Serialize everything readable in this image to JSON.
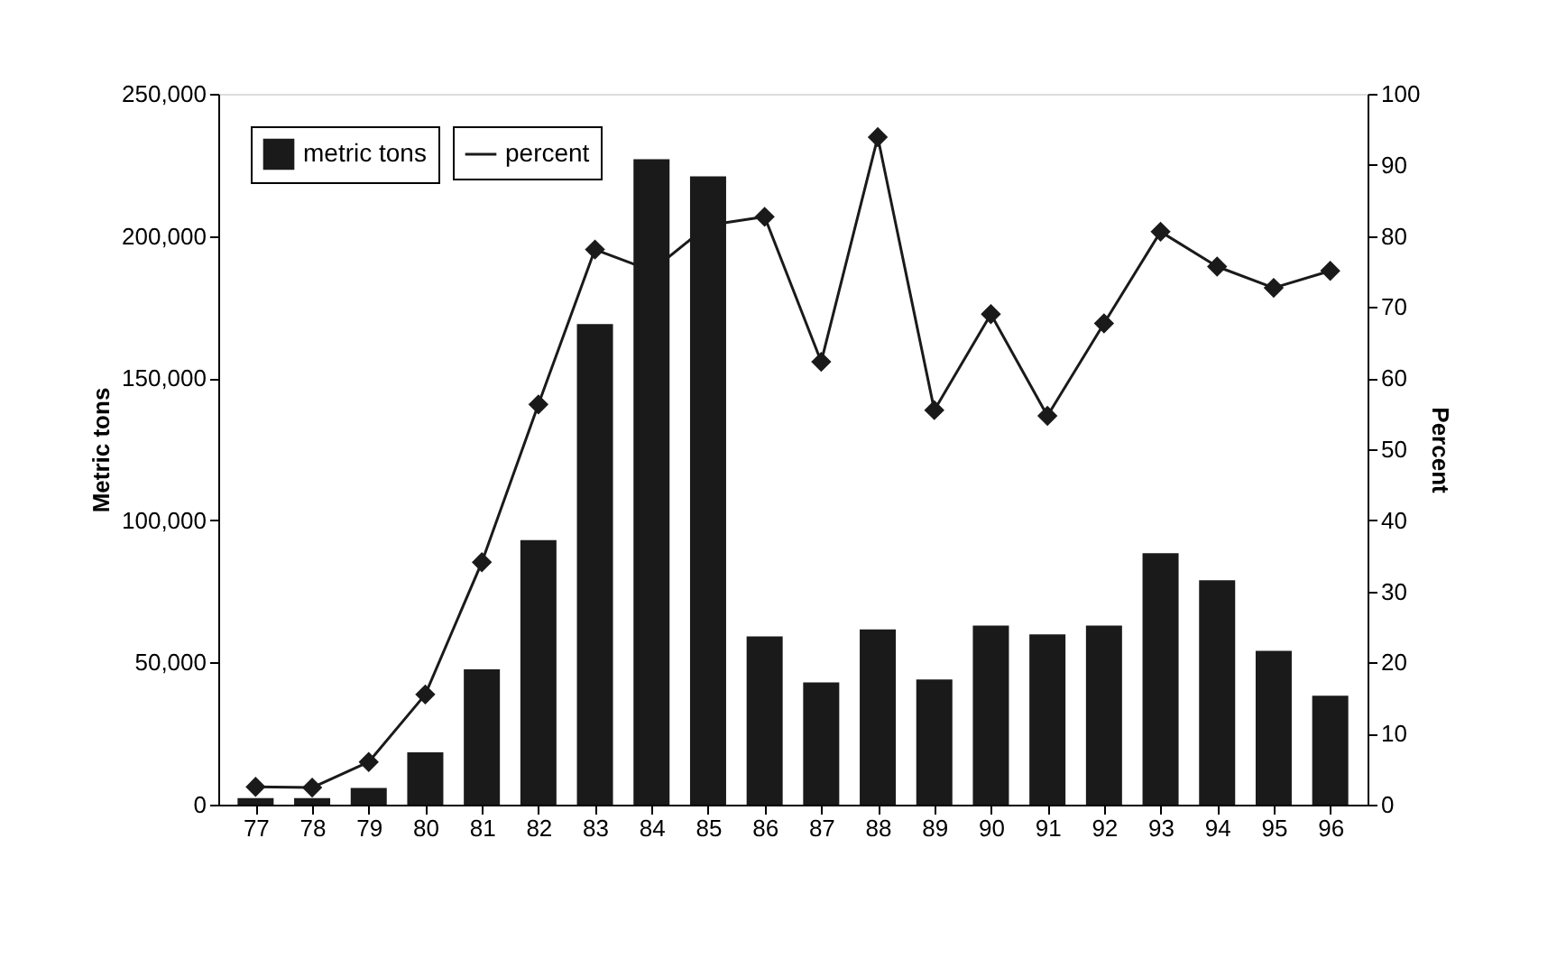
{
  "chart_data": {
    "type": "bar",
    "ylabel": "Metric tons",
    "y2label": "Percent",
    "categories": [
      "77",
      "78",
      "79",
      "80",
      "81",
      "82",
      "83",
      "84",
      "85",
      "86",
      "87",
      "88",
      "89",
      "90",
      "91",
      "92",
      "93",
      "94",
      "95",
      "96"
    ],
    "series": [
      {
        "name": "metric tons",
        "color": "#1a1a1a",
        "values": [
          2300,
          2300,
          5900,
          18400,
          47600,
          93000,
          169000,
          227000,
          221000,
          59200,
          43000,
          61600,
          44000,
          63000,
          59900,
          63000,
          88400,
          78900,
          54100,
          38300
        ]
      },
      {
        "name": "percent",
        "type": "line",
        "axis": "y2",
        "color": "#1a1a1a",
        "values": [
          2.5,
          2.4,
          6.0,
          15.5,
          34.1,
          56.3,
          78.1,
          75.1,
          81.5,
          82.7,
          62.3,
          93.9,
          55.5,
          69.0,
          54.7,
          67.7,
          80.6,
          75.7,
          72.7,
          75.1
        ]
      }
    ],
    "ylim": [
      0,
      250000
    ],
    "yticks": [
      0,
      {
        "value": 50000,
        "label": "50,000"
      },
      {
        "value": 100000,
        "label": "100,000"
      },
      {
        "value": 150000,
        "label": "150,000"
      },
      {
        "value": 200000,
        "label": "200,000"
      },
      {
        "value": 250000,
        "label": "250,000"
      }
    ],
    "y2lim": [
      0,
      100
    ],
    "y2ticks": [
      0,
      10,
      20,
      30,
      40,
      50,
      60,
      70,
      80,
      90,
      100
    ],
    "grid": false,
    "legend": "top left",
    "marker": "diamond",
    "line_style": "solid"
  }
}
